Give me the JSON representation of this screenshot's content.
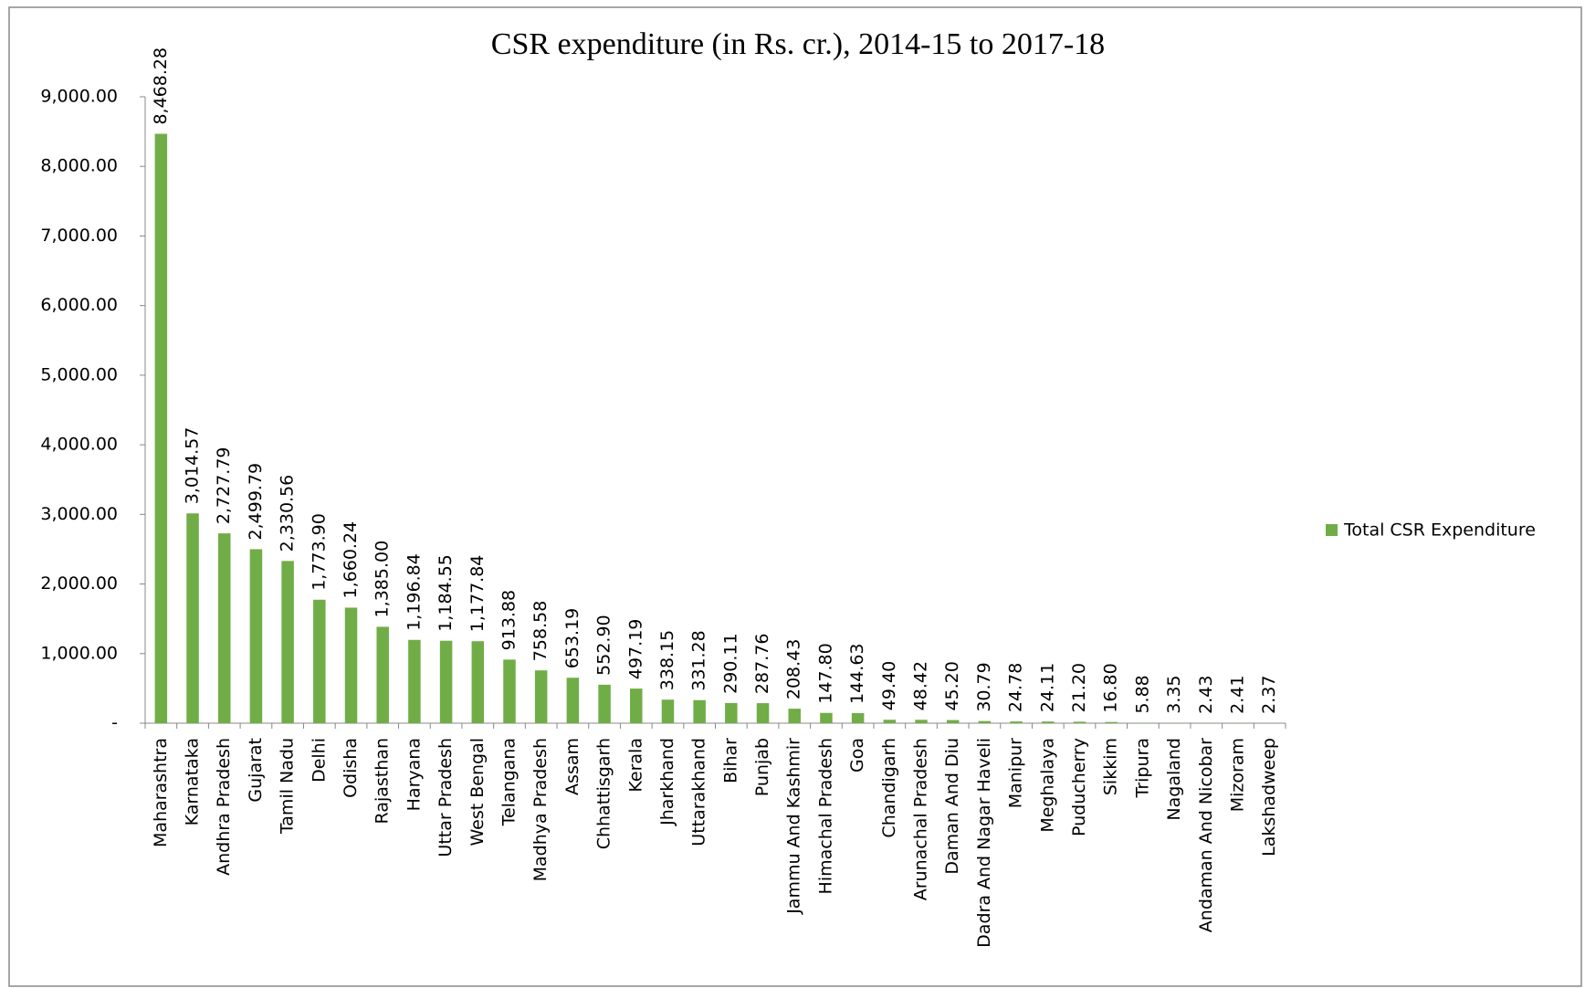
{
  "chart_data": {
    "type": "bar",
    "title": "CSR expenditure (in Rs. cr.), 2014-15 to 2017-18",
    "categories": [
      "Maharashtra",
      "Karnataka",
      "Andhra Pradesh",
      "Gujarat",
      "Tamil Nadu",
      "Delhi",
      "Odisha",
      "Rajasthan",
      "Haryana",
      "Uttar Pradesh",
      "West Bengal",
      "Telangana",
      "Madhya Pradesh",
      "Assam",
      "Chhattisgarh",
      "Kerala",
      "Jharkhand",
      "Uttarakhand",
      "Bihar",
      "Punjab",
      "Jammu And Kashmir",
      "Himachal Pradesh",
      "Goa",
      "Chandigarh",
      "Arunachal Pradesh",
      "Daman And Diu",
      "Dadra And Nagar Haveli",
      "Manipur",
      "Meghalaya",
      "Puducherry",
      "Sikkim",
      "Tripura",
      "Nagaland",
      "Andaman And Nicobar",
      "Mizoram",
      "Lakshadweep"
    ],
    "series": [
      {
        "name": "Total CSR Expenditure",
        "color": "#70ad47",
        "values": [
          8468.28,
          3014.57,
          2727.79,
          2499.79,
          2330.56,
          1773.9,
          1660.24,
          1385.0,
          1196.84,
          1184.55,
          1177.84,
          913.88,
          758.58,
          653.19,
          552.9,
          497.19,
          338.15,
          331.28,
          290.11,
          287.76,
          208.43,
          147.8,
          144.63,
          49.4,
          48.42,
          45.2,
          30.79,
          24.78,
          24.11,
          21.2,
          16.8,
          5.88,
          3.35,
          2.43,
          2.41,
          2.37
        ],
        "value_labels": [
          "8,468.28",
          "3,014.57",
          "2,727.79",
          "2,499.79",
          "2,330.56",
          "1,773.90",
          "1,660.24",
          "1,385.00",
          "1,196.84",
          "1,184.55",
          "1,177.84",
          "913.88",
          "758.58",
          "653.19",
          "552.90",
          "497.19",
          "338.15",
          "331.28",
          "290.11",
          "287.76",
          "208.43",
          "147.80",
          "144.63",
          "49.40",
          "48.42",
          "45.20",
          "30.79",
          "24.78",
          "24.11",
          "21.20",
          "16.80",
          "5.88",
          "3.35",
          "2.43",
          "2.41",
          "2.37"
        ]
      }
    ],
    "ylim": [
      0,
      9000
    ],
    "yticks": [
      {
        "value": 0,
        "label": "-"
      },
      {
        "value": 1000,
        "label": "1,000.00"
      },
      {
        "value": 2000,
        "label": "2,000.00"
      },
      {
        "value": 3000,
        "label": "3,000.00"
      },
      {
        "value": 4000,
        "label": "4,000.00"
      },
      {
        "value": 5000,
        "label": "5,000.00"
      },
      {
        "value": 6000,
        "label": "6,000.00"
      },
      {
        "value": 7000,
        "label": "7,000.00"
      },
      {
        "value": 8000,
        "label": "8,000.00"
      },
      {
        "value": 9000,
        "label": "9,000.00"
      }
    ],
    "legend": "right"
  }
}
